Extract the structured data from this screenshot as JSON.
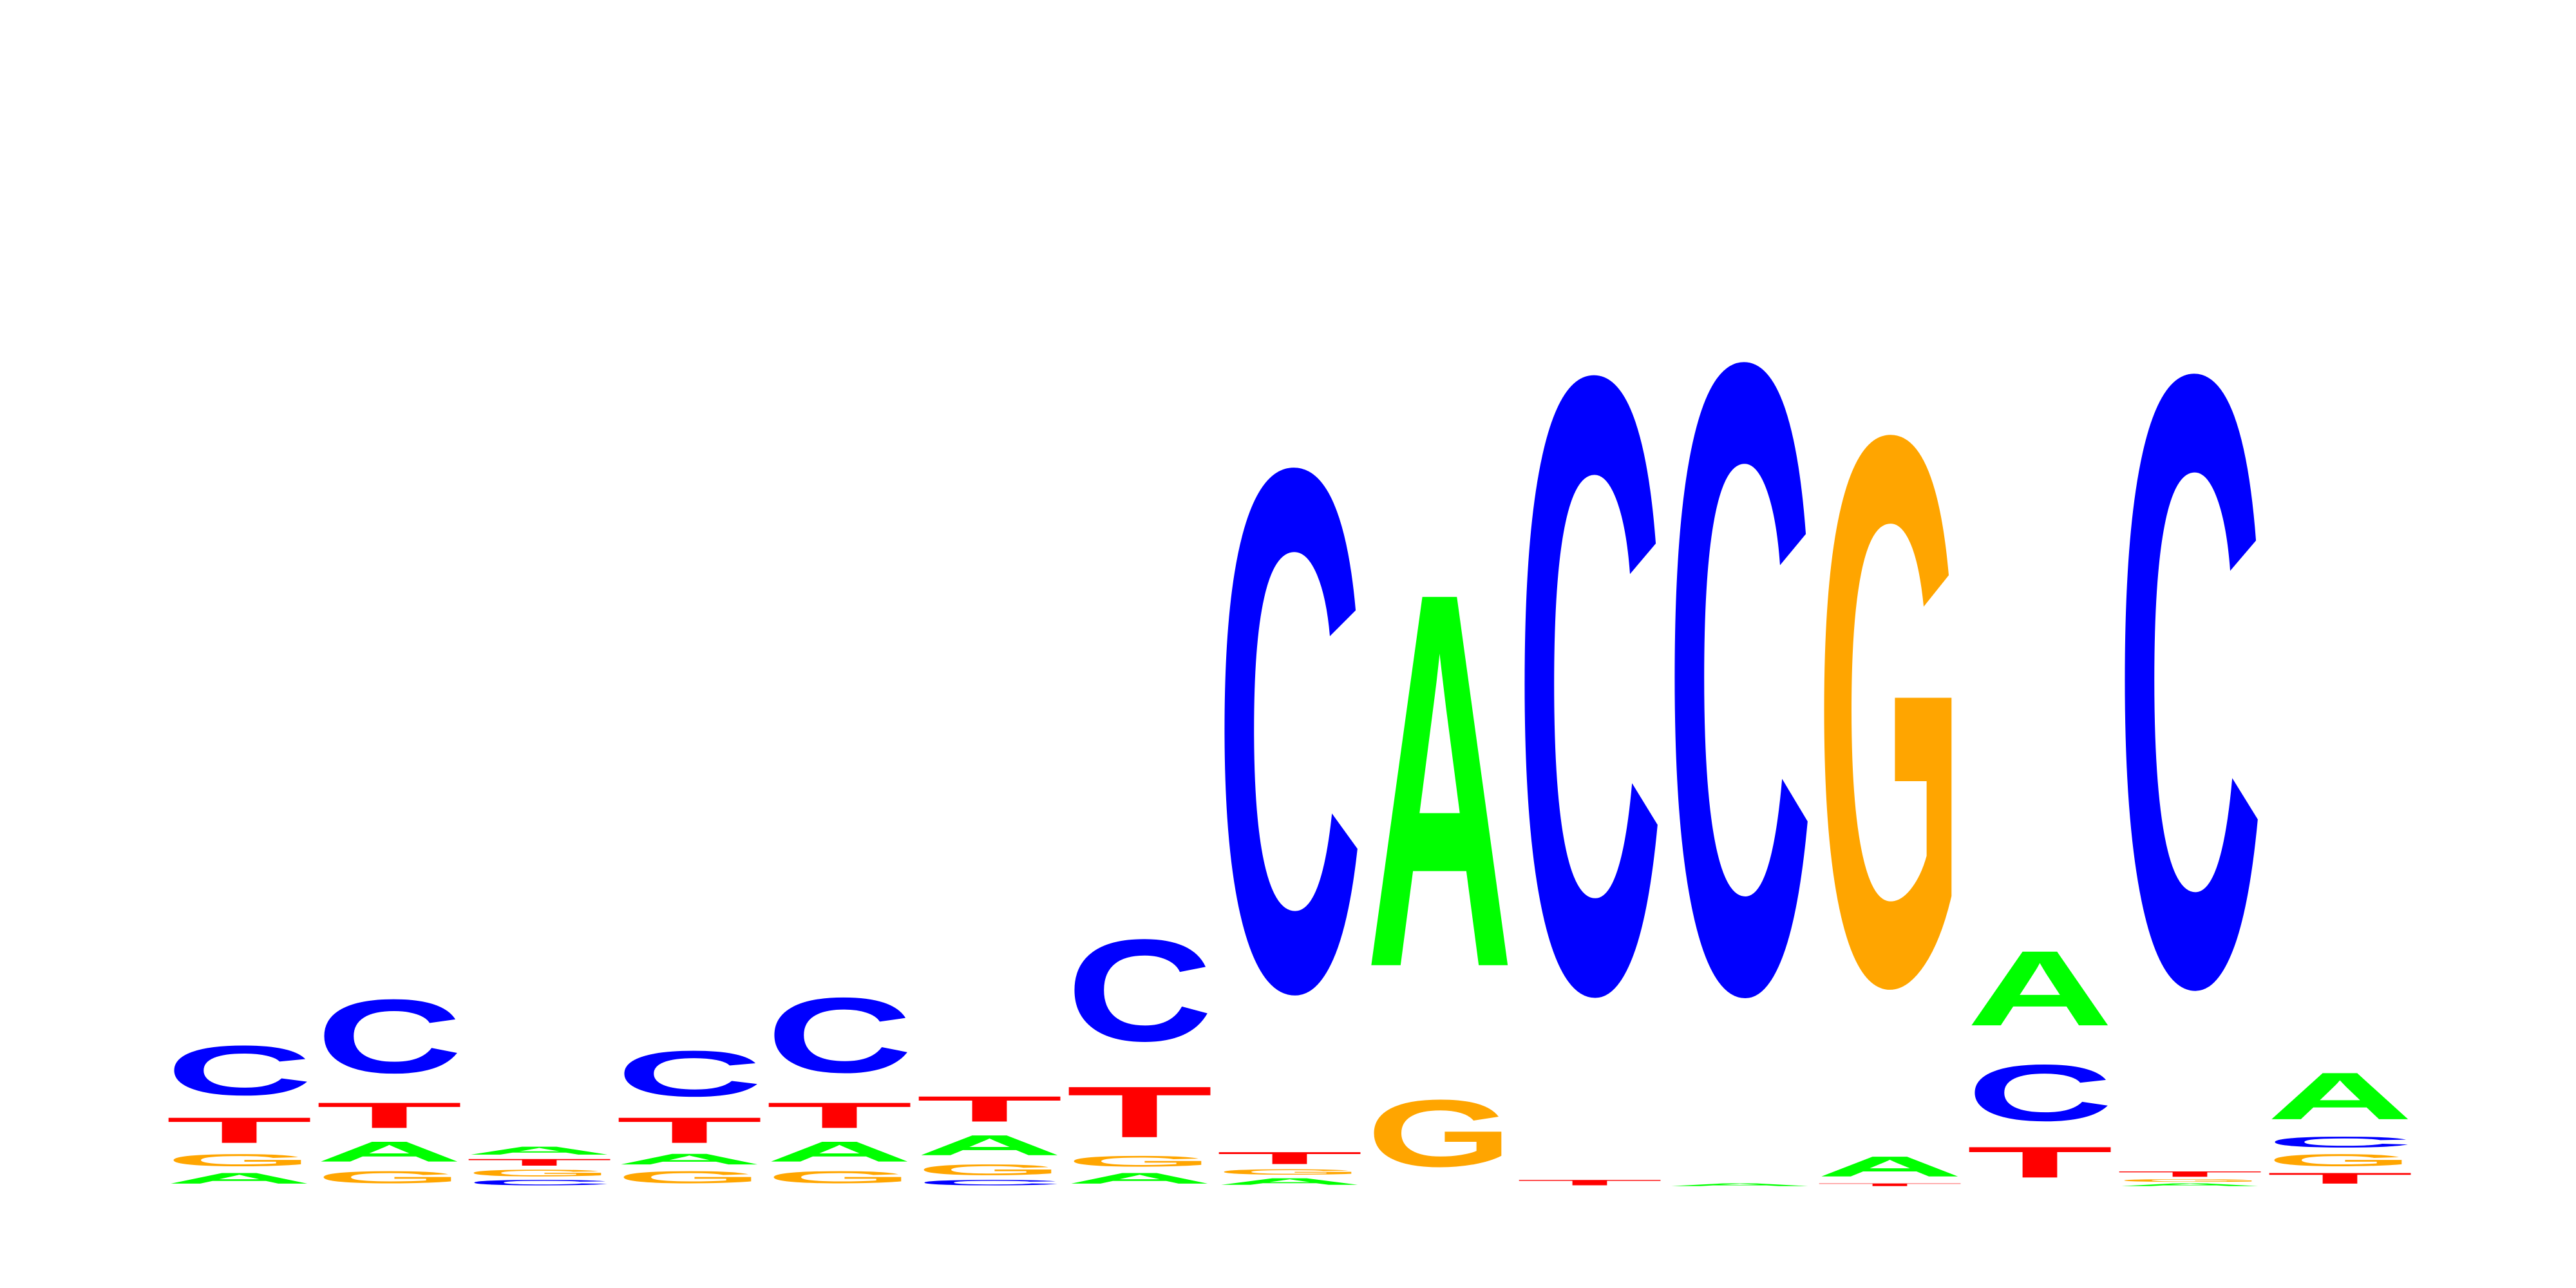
{
  "chart_data": {
    "type": "sequence-logo",
    "colors": {
      "A": "#00ff00",
      "C": "#0000ff",
      "G": "#ffa500",
      "T": "#ff0000"
    },
    "positions": [
      {
        "position": 1,
        "letters": [
          {
            "base": "A",
            "height": 0.08
          },
          {
            "base": "G",
            "height": 0.09
          },
          {
            "base": "T",
            "height": 0.19
          },
          {
            "base": "C",
            "height": 0.37
          }
        ]
      },
      {
        "position": 2,
        "letters": [
          {
            "base": "G",
            "height": 0.09
          },
          {
            "base": "A",
            "height": 0.15
          },
          {
            "base": "T",
            "height": 0.19
          },
          {
            "base": "C",
            "height": 0.55
          }
        ]
      },
      {
        "position": 3,
        "letters": [
          {
            "base": "C",
            "height": 0.04
          },
          {
            "base": "G",
            "height": 0.05
          },
          {
            "base": "T",
            "height": 0.05
          },
          {
            "base": "A",
            "height": 0.06
          }
        ]
      },
      {
        "position": 4,
        "letters": [
          {
            "base": "G",
            "height": 0.09
          },
          {
            "base": "A",
            "height": 0.08
          },
          {
            "base": "T",
            "height": 0.19
          },
          {
            "base": "C",
            "height": 0.34
          }
        ]
      },
      {
        "position": 5,
        "letters": [
          {
            "base": "G",
            "height": 0.09
          },
          {
            "base": "A",
            "height": 0.15
          },
          {
            "base": "T",
            "height": 0.19
          },
          {
            "base": "C",
            "height": 0.56
          }
        ]
      },
      {
        "position": 6,
        "letters": [
          {
            "base": "C",
            "height": 0.04
          },
          {
            "base": "G",
            "height": 0.08
          },
          {
            "base": "A",
            "height": 0.15
          },
          {
            "base": "T",
            "height": 0.19
          }
        ]
      },
      {
        "position": 7,
        "letters": [
          {
            "base": "A",
            "height": 0.08
          },
          {
            "base": "G",
            "height": 0.08
          },
          {
            "base": "T",
            "height": 0.38
          },
          {
            "base": "C",
            "height": 0.76
          }
        ]
      },
      {
        "position": 8,
        "letters": [
          {
            "base": "A",
            "height": 0.05
          },
          {
            "base": "G",
            "height": 0.04
          },
          {
            "base": "T",
            "height": 0.09
          },
          {
            "base": "C",
            "height": 3.9
          }
        ]
      },
      {
        "position": 9,
        "letters": [
          {
            "base": "G",
            "height": 0.5
          },
          {
            "base": "A",
            "height": 2.8
          }
        ]
      },
      {
        "position": 10,
        "letters": [
          {
            "base": "T",
            "height": 0.04
          },
          {
            "base": "C",
            "height": 4.6
          }
        ]
      },
      {
        "position": 11,
        "letters": [
          {
            "base": "A",
            "height": 0.02
          },
          {
            "base": "C",
            "height": 4.7
          }
        ]
      },
      {
        "position": 12,
        "letters": [
          {
            "base": "T",
            "height": 0.02
          },
          {
            "base": "A",
            "height": 0.15
          },
          {
            "base": "G",
            "height": 4.1
          }
        ]
      },
      {
        "position": 13,
        "letters": [
          {
            "base": "T",
            "height": 0.23
          },
          {
            "base": "C",
            "height": 0.42
          },
          {
            "base": "A",
            "height": 0.56
          }
        ]
      },
      {
        "position": 14,
        "letters": [
          {
            "base": "A",
            "height": 0.02
          },
          {
            "base": "G",
            "height": 0.02
          },
          {
            "base": "T",
            "height": 0.04
          },
          {
            "base": "C",
            "height": 4.56
          }
        ]
      },
      {
        "position": 15,
        "letters": [
          {
            "base": "T",
            "height": 0.08
          },
          {
            "base": "G",
            "height": 0.09
          },
          {
            "base": "C",
            "height": 0.08
          },
          {
            "base": "A",
            "height": 0.35
          }
        ]
      }
    ]
  }
}
